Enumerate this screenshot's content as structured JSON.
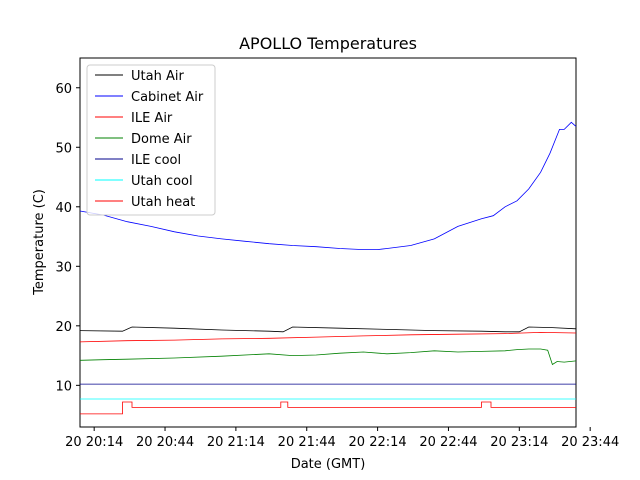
{
  "chart_data": {
    "type": "line",
    "title": "APOLLO Temperatures",
    "xlabel": "Date (GMT)",
    "ylabel": "Temperature (C)",
    "xlim": [
      0,
      210
    ],
    "ylim": [
      3,
      65
    ],
    "grid": false,
    "legend_position": "top-left",
    "x_ticks": [
      {
        "value": 6,
        "label": "20 20:14"
      },
      {
        "value": 36,
        "label": "20 20:44"
      },
      {
        "value": 66,
        "label": "20 21:14"
      },
      {
        "value": 96,
        "label": "20 21:44"
      },
      {
        "value": 126,
        "label": "20 22:14"
      },
      {
        "value": 156,
        "label": "20 22:44"
      },
      {
        "value": 186,
        "label": "20 23:14"
      },
      {
        "value": 216,
        "label": "20 23:44"
      }
    ],
    "y_ticks": [
      10,
      20,
      30,
      40,
      50,
      60
    ],
    "series": [
      {
        "name": "Utah Air",
        "color": "#000000",
        "x": [
          0,
          18,
          22,
          40,
          60,
          80,
          86,
          90,
          110,
          130,
          150,
          170,
          180,
          186,
          190,
          200,
          210
        ],
        "y": [
          19.2,
          19.1,
          19.8,
          19.6,
          19.3,
          19.1,
          19.0,
          19.8,
          19.6,
          19.4,
          19.2,
          19.1,
          19.0,
          19.0,
          19.8,
          19.7,
          19.5
        ]
      },
      {
        "name": "Cabinet Air",
        "color": "#0000ff",
        "x": [
          0,
          10,
          20,
          30,
          40,
          50,
          60,
          70,
          80,
          90,
          100,
          110,
          120,
          126,
          130,
          140,
          150,
          160,
          170,
          175,
          180,
          185,
          190,
          195,
          199,
          203,
          205,
          208,
          210
        ],
        "y": [
          39.3,
          38.6,
          37.5,
          36.7,
          35.8,
          35.1,
          34.6,
          34.2,
          33.8,
          33.5,
          33.3,
          33.0,
          32.8,
          32.8,
          33.0,
          33.5,
          34.6,
          36.7,
          38.0,
          38.5,
          40.0,
          41.0,
          43.0,
          45.8,
          49.0,
          53.0,
          53.0,
          54.2,
          53.5
        ]
      },
      {
        "name": "ILE Air",
        "color": "#ff0000",
        "x": [
          0,
          20,
          40,
          60,
          80,
          100,
          120,
          140,
          160,
          180,
          195,
          210
        ],
        "y": [
          17.3,
          17.5,
          17.6,
          17.8,
          17.9,
          18.1,
          18.3,
          18.5,
          18.6,
          18.7,
          18.9,
          18.8
        ]
      },
      {
        "name": "Dome Air",
        "color": "#008000",
        "x": [
          0,
          10,
          20,
          40,
          60,
          80,
          90,
          100,
          110,
          120,
          130,
          140,
          150,
          160,
          170,
          180,
          185,
          190,
          195,
          198,
          200,
          202,
          205,
          210
        ],
        "y": [
          14.2,
          14.3,
          14.4,
          14.6,
          14.9,
          15.3,
          15.0,
          15.1,
          15.4,
          15.6,
          15.3,
          15.5,
          15.8,
          15.6,
          15.7,
          15.8,
          16.0,
          16.1,
          16.1,
          15.9,
          13.5,
          14.0,
          13.9,
          14.1
        ]
      },
      {
        "name": "ILE cool",
        "color": "#00008b",
        "x": [
          0,
          210
        ],
        "y": [
          10.2,
          10.2
        ]
      },
      {
        "name": "Utah cool",
        "color": "#00ffff",
        "x": [
          0,
          210
        ],
        "y": [
          7.7,
          7.7
        ]
      },
      {
        "name": "Utah heat",
        "color": "#ff0000",
        "x": [
          0,
          18,
          18,
          22,
          22,
          85,
          85,
          88,
          88,
          170,
          170,
          174,
          174,
          210
        ],
        "y": [
          5.2,
          5.2,
          7.2,
          7.2,
          6.3,
          6.3,
          7.2,
          7.2,
          6.3,
          6.3,
          7.2,
          7.2,
          6.3,
          6.3
        ]
      }
    ]
  }
}
